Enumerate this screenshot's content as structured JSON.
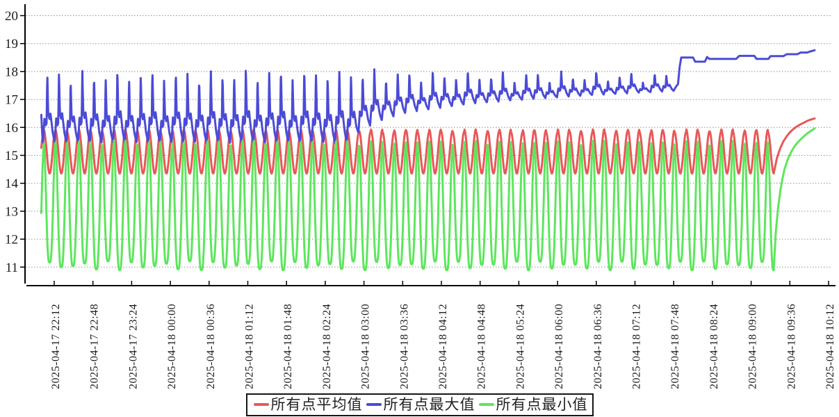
{
  "chart_data": {
    "type": "line",
    "title": "",
    "x_axis": {
      "label": "",
      "first_tick_minute": 12,
      "tick_interval_minutes": 36,
      "data_start_minute": 0,
      "data_end_minute": 719,
      "tick_labels": [
        "2025-04-17 22:12",
        "2025-04-17 22:48",
        "2025-04-17 23:24",
        "2025-04-18 00:00",
        "2025-04-18 00:36",
        "2025-04-18 01:12",
        "2025-04-18 01:48",
        "2025-04-18 02:24",
        "2025-04-18 03:00",
        "2025-04-18 03:36",
        "2025-04-18 04:12",
        "2025-04-18 04:48",
        "2025-04-18 05:24",
        "2025-04-18 06:00",
        "2025-04-18 06:36",
        "2025-04-18 07:12",
        "2025-04-18 07:48",
        "2025-04-18 08:24",
        "2025-04-18 09:00",
        "2025-04-18 09:36",
        "2025-04-18 10:12"
      ]
    },
    "y_axis": {
      "label": "",
      "tick_values": [
        11,
        12,
        13,
        14,
        15,
        16,
        17,
        18,
        19,
        20
      ],
      "min": 10.35,
      "max": 20.35
    },
    "grid": {
      "horizontal": true,
      "vertical": false,
      "style": "dotted",
      "color": "#8f8f8f"
    },
    "axis_color": "#000000",
    "text_color": "#1c1c1c",
    "legend": {
      "position": "bottom-center",
      "border_color": "#141414"
    },
    "series": [
      {
        "key": "average",
        "name": "所有点平均值",
        "color": "#ea5757",
        "waveform": {
          "period_min": 10.86,
          "anchor_min": 2.3,
          "t_start": 0,
          "t_end": 681,
          "shape": {
            "type": "cos"
          },
          "low_env": [
            [
              0,
              14.35
            ],
            [
              681,
              14.35
            ]
          ],
          "high_env": [
            [
              0,
              15.88
            ],
            [
              681,
              15.88
            ]
          ],
          "high_jitter": 0.05
        },
        "tail_points": [
          [
            684,
            14.9
          ],
          [
            687,
            15.25
          ],
          [
            690,
            15.5
          ],
          [
            693,
            15.68
          ],
          [
            696,
            15.82
          ],
          [
            699,
            15.93
          ],
          [
            702,
            16.02
          ],
          [
            705,
            16.09
          ],
          [
            708,
            16.15
          ],
          [
            711,
            16.21
          ],
          [
            714,
            16.26
          ],
          [
            719,
            16.32
          ]
        ]
      },
      {
        "key": "max",
        "name": "所有点最大值",
        "color": "#4b4bd6",
        "head_points": [
          [
            0,
            16.45
          ],
          [
            0.9,
            15.75
          ]
        ],
        "waveform": {
          "period_min": 10.86,
          "anchor_min": 1.65,
          "t_start": 1.65,
          "t_end": 588,
          "shape": {
            "type": "keyframes",
            "frames": [
              [
                0,
                0
              ],
              [
                0.12,
                0.36
              ],
              [
                0.22,
                0.25
              ],
              [
                0.3,
                0.28
              ],
              [
                0.36,
                1
              ],
              [
                0.44,
                0.42
              ],
              [
                0.55,
                0.34
              ],
              [
                0.63,
                0.43
              ],
              [
                0.82,
                0.15
              ],
              [
                1,
                0
              ]
            ]
          },
          "low_env": [
            [
              0,
              15.45
            ],
            [
              287,
              15.45
            ],
            [
              297,
              15.9
            ],
            [
              311,
              16.15
            ],
            [
              323,
              16.35
            ],
            [
              343,
              16.55
            ],
            [
              362,
              16.65
            ],
            [
              400,
              16.85
            ],
            [
              450,
              17.0
            ],
            [
              510,
              17.15
            ],
            [
              560,
              17.25
            ],
            [
              588,
              17.3
            ]
          ],
          "high_env": [
            [
              0,
              17.85
            ],
            [
              280,
              17.95
            ],
            [
              350,
              17.85
            ],
            [
              588,
              17.8
            ]
          ],
          "high_jitter": 0.2
        },
        "tail_points": [
          [
            590,
            17.45
          ],
          [
            592,
            17.55
          ],
          [
            593.5,
            18.15
          ],
          [
            595,
            18.5
          ],
          [
            606,
            18.5
          ],
          [
            608,
            18.35
          ],
          [
            617,
            18.35
          ],
          [
            619,
            18.52
          ],
          [
            621,
            18.45
          ],
          [
            646,
            18.45
          ],
          [
            649,
            18.56
          ],
          [
            663,
            18.56
          ],
          [
            665,
            18.45
          ],
          [
            676,
            18.45
          ],
          [
            678,
            18.55
          ],
          [
            690,
            18.55
          ],
          [
            693,
            18.62
          ],
          [
            703,
            18.62
          ],
          [
            706,
            18.68
          ],
          [
            712,
            18.68
          ],
          [
            715,
            18.72
          ],
          [
            719,
            18.76
          ]
        ]
      },
      {
        "key": "min",
        "name": "所有点最小值",
        "color": "#5de65d",
        "waveform": {
          "period_min": 10.86,
          "anchor_min": 2.3,
          "t_start": 0,
          "t_end": 681,
          "shape": {
            "type": "cos_pow",
            "pow": 1.6
          },
          "low_env": [
            [
              0,
              11.05
            ],
            [
              681,
              11.05
            ]
          ],
          "high_env": [
            [
              0,
              15.4
            ],
            [
              681,
              15.4
            ]
          ],
          "low_jitter": 0.16,
          "high_jitter": 0.12
        },
        "tail_points": [
          [
            683,
            12.3
          ],
          [
            685,
            13.1
          ],
          [
            687,
            13.7
          ],
          [
            689,
            14.15
          ],
          [
            691,
            14.5
          ],
          [
            694,
            14.85
          ],
          [
            697,
            15.1
          ],
          [
            700,
            15.3
          ],
          [
            703,
            15.45
          ],
          [
            706,
            15.57
          ],
          [
            709,
            15.68
          ],
          [
            712,
            15.78
          ],
          [
            715,
            15.86
          ],
          [
            719,
            15.96
          ]
        ]
      }
    ]
  }
}
